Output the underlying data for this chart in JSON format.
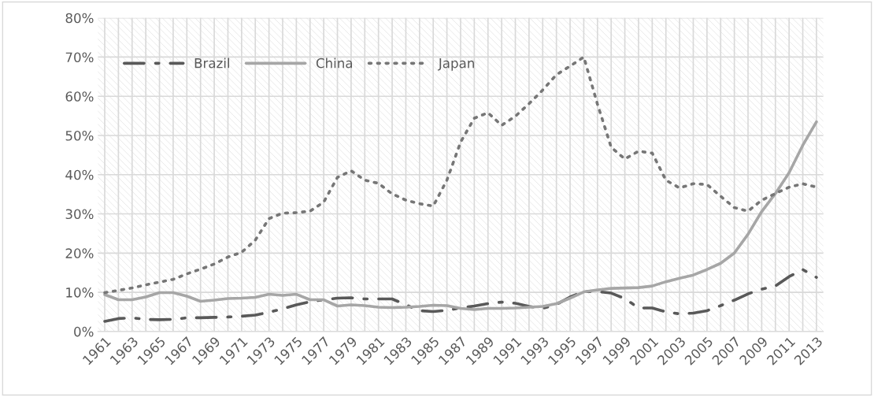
{
  "chart_data": {
    "type": "line",
    "categories": [
      "1961",
      null,
      "1963",
      null,
      "1965",
      null,
      "1967",
      null,
      "1969",
      null,
      "1971",
      null,
      "1973",
      null,
      "1975",
      null,
      "1977",
      null,
      "1979",
      null,
      "1981",
      null,
      "1983",
      null,
      "1985",
      null,
      "1987",
      null,
      "1989",
      null,
      "1991",
      null,
      "1993",
      null,
      "1995",
      null,
      "1997",
      null,
      "1999",
      null,
      "2001",
      null,
      "2003",
      null,
      "2005",
      null,
      "2007",
      null,
      "2009",
      null,
      "2011",
      null,
      "2013"
    ],
    "series": [
      {
        "name": "Brazil",
        "color": "#595959",
        "line_style": "dashdot",
        "values": [
          2.6,
          3.3,
          3.5,
          3.1,
          3.0,
          3.1,
          3.5,
          3.5,
          3.6,
          3.7,
          3.9,
          4.2,
          4.9,
          5.8,
          6.8,
          7.6,
          8.1,
          8.5,
          8.6,
          8.3,
          8.3,
          8.3,
          6.8,
          5.3,
          5.1,
          5.4,
          6.0,
          6.5,
          7.1,
          7.5,
          7.2,
          6.4,
          5.9,
          6.9,
          8.8,
          10.2,
          10.2,
          9.8,
          8.4,
          6.0,
          6.0,
          5.0,
          4.5,
          4.7,
          5.3,
          6.6,
          8.0,
          9.6,
          10.8,
          11.6,
          14.0,
          15.8,
          13.8
        ]
      },
      {
        "name": "China",
        "color": "#a6a6a6",
        "line_style": "solid",
        "values": [
          9.4,
          8.1,
          8.1,
          8.8,
          9.9,
          9.9,
          9.0,
          7.7,
          8.0,
          8.4,
          8.5,
          8.7,
          9.5,
          9.2,
          9.5,
          8.1,
          8.1,
          6.5,
          6.8,
          6.6,
          6.2,
          6.1,
          6.2,
          6.4,
          6.7,
          6.6,
          5.9,
          5.6,
          5.9,
          5.9,
          6.0,
          6.2,
          6.4,
          7.1,
          8.5,
          10.1,
          10.6,
          11.0,
          11.1,
          11.2,
          11.6,
          12.7,
          13.6,
          14.4,
          15.8,
          17.4,
          20.0,
          24.8,
          30.6,
          35.2,
          40.5,
          47.5,
          53.5
        ]
      },
      {
        "name": "Japan",
        "color": "#767676",
        "line_style": "dotted",
        "values": [
          9.9,
          10.5,
          11.1,
          11.9,
          12.6,
          13.3,
          14.7,
          15.9,
          17.2,
          19.0,
          20.2,
          23.3,
          28.8,
          30.2,
          30.3,
          30.7,
          33.0,
          39.3,
          41.0,
          38.6,
          37.8,
          35.1,
          33.5,
          32.6,
          32.0,
          38.6,
          48.3,
          54.4,
          55.8,
          52.6,
          54.9,
          58.1,
          61.6,
          65.5,
          67.7,
          70.0,
          58.0,
          47.0,
          44.0,
          46.0,
          45.5,
          38.6,
          36.6,
          37.7,
          37.5,
          34.5,
          31.6,
          30.7,
          33.5,
          35.2,
          36.8,
          37.7,
          36.8
        ]
      }
    ],
    "ylim": [
      0,
      80
    ],
    "yticks": [
      {
        "value": 0,
        "label": "0%"
      },
      {
        "value": 10,
        "label": "10%"
      },
      {
        "value": 20,
        "label": "20%"
      },
      {
        "value": 30,
        "label": "30%"
      },
      {
        "value": 40,
        "label": "40%"
      },
      {
        "value": 50,
        "label": "50%"
      },
      {
        "value": 60,
        "label": "60%"
      },
      {
        "value": 70,
        "label": "70%"
      },
      {
        "value": 80,
        "label": "80%"
      }
    ],
    "grid": true,
    "legend": "top left",
    "marker": "none"
  }
}
